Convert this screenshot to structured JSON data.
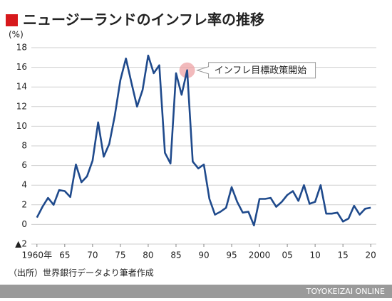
{
  "chart_data": {
    "type": "line",
    "title": "ニュージーランドのインフレ率の推移",
    "y_unit": "(%)",
    "source": "（出所）世界銀行データより筆者作成",
    "credit": "TOYOKEIZAI ONLINE",
    "x": [
      1960,
      1961,
      1962,
      1963,
      1964,
      1965,
      1966,
      1967,
      1968,
      1969,
      1970,
      1971,
      1972,
      1973,
      1974,
      1975,
      1976,
      1977,
      1978,
      1979,
      1980,
      1981,
      1982,
      1983,
      1984,
      1985,
      1986,
      1987,
      1988,
      1989,
      1990,
      1991,
      1992,
      1993,
      1994,
      1995,
      1996,
      1997,
      1998,
      1999,
      2000,
      2001,
      2002,
      2003,
      2004,
      2005,
      2006,
      2007,
      2008,
      2009,
      2010,
      2011,
      2012,
      2013,
      2014,
      2015,
      2016,
      2017,
      2018,
      2019,
      2020
    ],
    "series": [
      {
        "name": "インフレ率",
        "color": "#1f4a8c",
        "values": [
          0.7,
          1.8,
          2.7,
          2.0,
          3.5,
          3.4,
          2.8,
          6.1,
          4.3,
          4.9,
          6.5,
          10.4,
          6.9,
          8.2,
          11.1,
          14.7,
          16.9,
          14.4,
          12.0,
          13.7,
          17.2,
          15.4,
          16.2,
          7.3,
          6.2,
          15.4,
          13.2,
          15.7,
          6.4,
          5.7,
          6.1,
          2.6,
          1.0,
          1.3,
          1.7,
          3.8,
          2.3,
          1.2,
          1.3,
          -0.1,
          2.6,
          2.6,
          2.7,
          1.8,
          2.3,
          3.0,
          3.4,
          2.4,
          4.0,
          2.1,
          2.3,
          4.0,
          1.1,
          1.1,
          1.2,
          0.3,
          0.6,
          1.9,
          1.0,
          1.6,
          1.7
        ]
      }
    ],
    "xlim": [
      1959,
      2021
    ],
    "ylim": [
      -2,
      18
    ],
    "xticks": [
      {
        "value": 1960,
        "label": "1960年"
      },
      {
        "value": 1965,
        "label": "65"
      },
      {
        "value": 1970,
        "label": "70"
      },
      {
        "value": 1975,
        "label": "75"
      },
      {
        "value": 1980,
        "label": "80"
      },
      {
        "value": 1985,
        "label": "85"
      },
      {
        "value": 1990,
        "label": "90"
      },
      {
        "value": 1995,
        "label": "95"
      },
      2000,
      {
        "value": 2005,
        "label": "05"
      },
      {
        "value": 2010,
        "label": "10"
      },
      {
        "value": 2015,
        "label": "15"
      },
      {
        "value": 2020,
        "label": "20"
      }
    ],
    "yticks": [
      {
        "value": -2,
        "label": "▲2"
      },
      0,
      2,
      4,
      6,
      8,
      10,
      12,
      14,
      16,
      18
    ],
    "grid": true,
    "annotation": {
      "text": "インフレ目標政策開始",
      "x": 1987,
      "y": 15.7
    }
  }
}
